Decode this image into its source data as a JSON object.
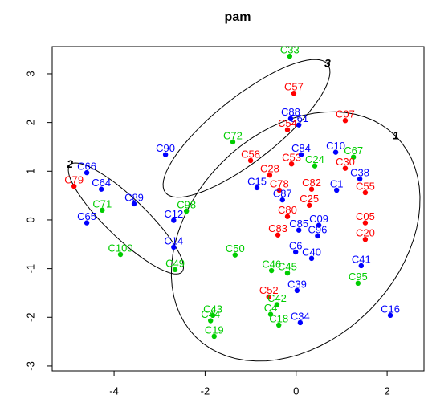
{
  "chart_data": {
    "type": "scatter",
    "title": "pam",
    "xlim": [
      -5.36,
      2.81
    ],
    "ylim": [
      -3.1,
      3.56
    ],
    "xticks": [
      -4,
      -2,
      0,
      2
    ],
    "yticks": [
      -3,
      -2,
      -1,
      0,
      1,
      2,
      3
    ],
    "points": [
      {
        "label": "C33",
        "x": -0.14,
        "y": 3.36,
        "color": "#00cd00"
      },
      {
        "label": "C57",
        "x": -0.05,
        "y": 2.6,
        "color": "#ff0000"
      },
      {
        "label": "C88",
        "x": -0.12,
        "y": 2.08,
        "color": "#0000ff"
      },
      {
        "label": "C61",
        "x": 0.06,
        "y": 1.95,
        "color": "#0000ff"
      },
      {
        "label": "C54",
        "x": -0.19,
        "y": 1.85,
        "color": "#ff0000"
      },
      {
        "label": "C07",
        "x": 1.08,
        "y": 2.04,
        "color": "#ff0000"
      },
      {
        "label": "C72",
        "x": -1.39,
        "y": 1.6,
        "color": "#00cd00"
      },
      {
        "label": "C90",
        "x": -2.87,
        "y": 1.34,
        "color": "#0000ff"
      },
      {
        "label": "C58",
        "x": -1.0,
        "y": 1.22,
        "color": "#ff0000"
      },
      {
        "label": "C28",
        "x": -0.58,
        "y": 0.92,
        "color": "#ff0000"
      },
      {
        "label": "C53",
        "x": -0.1,
        "y": 1.15,
        "color": "#ff0000"
      },
      {
        "label": "C24",
        "x": 0.41,
        "y": 1.11,
        "color": "#00cd00"
      },
      {
        "label": "C84",
        "x": 0.11,
        "y": 1.34,
        "color": "#0000ff"
      },
      {
        "label": "C10",
        "x": 0.87,
        "y": 1.39,
        "color": "#0000ff"
      },
      {
        "label": "C67",
        "x": 1.26,
        "y": 1.29,
        "color": "#00cd00"
      },
      {
        "label": "C30",
        "x": 1.08,
        "y": 1.06,
        "color": "#ff0000"
      },
      {
        "label": "C66",
        "x": -4.6,
        "y": 0.97,
        "color": "#0000ff"
      },
      {
        "label": "C79",
        "x": -4.88,
        "y": 0.69,
        "color": "#ff0000"
      },
      {
        "label": "C64",
        "x": -4.28,
        "y": 0.63,
        "color": "#0000ff"
      },
      {
        "label": "C89",
        "x": -3.56,
        "y": 0.33,
        "color": "#0000ff"
      },
      {
        "label": "C65",
        "x": -4.6,
        "y": -0.06,
        "color": "#0000ff"
      },
      {
        "label": "C71",
        "x": -4.26,
        "y": 0.2,
        "color": "#00cd00"
      },
      {
        "label": "C100",
        "x": -3.86,
        "y": -0.71,
        "color": "#00cd00"
      },
      {
        "label": "C12",
        "x": -2.69,
        "y": -0.01,
        "color": "#0000ff"
      },
      {
        "label": "C98",
        "x": -2.41,
        "y": 0.18,
        "color": "#00cd00"
      },
      {
        "label": "C14",
        "x": -2.69,
        "y": -0.56,
        "color": "#0000ff"
      },
      {
        "label": "C49",
        "x": -2.66,
        "y": -1.02,
        "color": "#00cd00"
      },
      {
        "label": "C50",
        "x": -1.34,
        "y": -0.72,
        "color": "#00cd00"
      },
      {
        "label": "C15",
        "x": -0.86,
        "y": 0.66,
        "color": "#0000ff"
      },
      {
        "label": "C78",
        "x": -0.37,
        "y": 0.61,
        "color": "#ff0000"
      },
      {
        "label": "C87",
        "x": -0.3,
        "y": 0.41,
        "color": "#0000ff"
      },
      {
        "label": "C82",
        "x": 0.34,
        "y": 0.63,
        "color": "#ff0000"
      },
      {
        "label": "C1",
        "x": 0.89,
        "y": 0.61,
        "color": "#0000ff"
      },
      {
        "label": "C55",
        "x": 1.52,
        "y": 0.56,
        "color": "#ff0000"
      },
      {
        "label": "C38",
        "x": 1.4,
        "y": 0.84,
        "color": "#0000ff"
      },
      {
        "label": "C25",
        "x": 0.29,
        "y": 0.3,
        "color": "#ff0000"
      },
      {
        "label": "C80",
        "x": -0.19,
        "y": 0.07,
        "color": "#ff0000"
      },
      {
        "label": "C05",
        "x": 1.52,
        "y": -0.06,
        "color": "#ff0000"
      },
      {
        "label": "C83",
        "x": -0.4,
        "y": -0.31,
        "color": "#ff0000"
      },
      {
        "label": "C85",
        "x": 0.06,
        "y": -0.21,
        "color": "#0000ff"
      },
      {
        "label": "C09",
        "x": 0.5,
        "y": -0.11,
        "color": "#0000ff"
      },
      {
        "label": "C96",
        "x": 0.47,
        "y": -0.33,
        "color": "#0000ff"
      },
      {
        "label": "C6",
        "x": -0.01,
        "y": -0.66,
        "color": "#0000ff"
      },
      {
        "label": "C40",
        "x": 0.34,
        "y": -0.79,
        "color": "#0000ff"
      },
      {
        "label": "C20",
        "x": 1.52,
        "y": -0.4,
        "color": "#ff0000"
      },
      {
        "label": "C41",
        "x": 1.43,
        "y": -0.94,
        "color": "#0000ff"
      },
      {
        "label": "C46",
        "x": -0.54,
        "y": -1.04,
        "color": "#00cd00"
      },
      {
        "label": "C45",
        "x": -0.19,
        "y": -1.09,
        "color": "#00cd00"
      },
      {
        "label": "C95",
        "x": 1.36,
        "y": -1.3,
        "color": "#00cd00"
      },
      {
        "label": "C39",
        "x": 0.02,
        "y": -1.45,
        "color": "#0000ff"
      },
      {
        "label": "C52",
        "x": -0.6,
        "y": -1.58,
        "color": "#ff0000"
      },
      {
        "label": "C42",
        "x": -0.42,
        "y": -1.74,
        "color": "#00cd00"
      },
      {
        "label": "C4",
        "x": -0.56,
        "y": -1.94,
        "color": "#00cd00"
      },
      {
        "label": "C18",
        "x": -0.38,
        "y": -2.16,
        "color": "#00cd00"
      },
      {
        "label": "C34",
        "x": 0.09,
        "y": -2.11,
        "color": "#0000ff"
      },
      {
        "label": "C16",
        "x": 2.07,
        "y": -1.96,
        "color": "#0000ff"
      },
      {
        "label": "C43",
        "x": -1.83,
        "y": -1.96,
        "color": "#00cd00"
      },
      {
        "label": "C44",
        "x": -1.88,
        "y": -2.07,
        "color": "#00cd00"
      },
      {
        "label": "C19",
        "x": -1.8,
        "y": -2.39,
        "color": "#00cd00"
      }
    ],
    "clusters": [
      {
        "label": "1",
        "cx": -0.01,
        "cy": -0.34,
        "ax": 2.2,
        "ay": 2.06,
        "bx": 1.62,
        "by": -1.52
      },
      {
        "label": "2",
        "cx": -3.74,
        "cy": 0.03,
        "ax": -1.23,
        "ay": 1.1,
        "bx": 0.3,
        "by": 0.3
      },
      {
        "label": "3",
        "cx": -1.09,
        "cy": 1.88,
        "ax": 1.78,
        "ay": 1.32,
        "bx": -0.44,
        "by": 0.51
      }
    ]
  }
}
